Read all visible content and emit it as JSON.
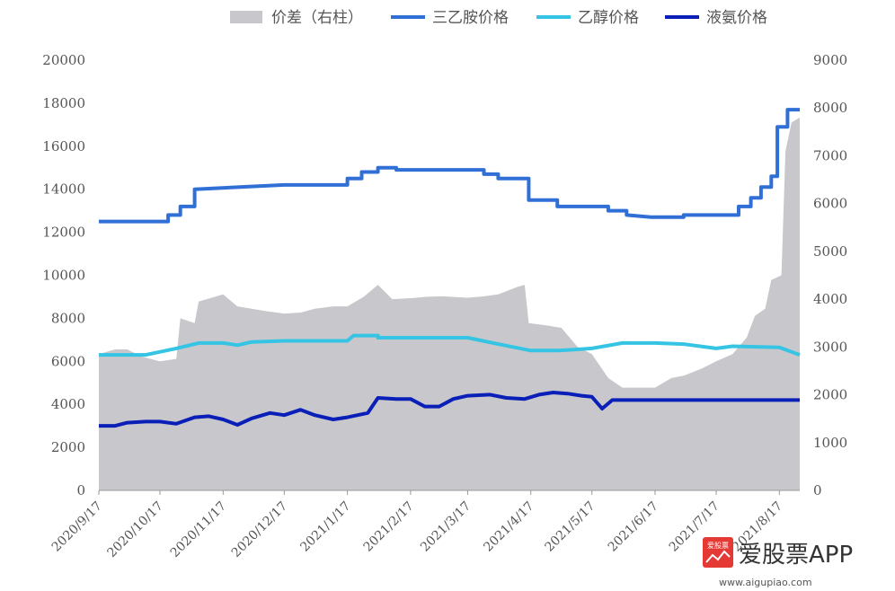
{
  "chart_data": {
    "type": "line",
    "x": [
      "2020/9/17",
      "2020/10/17",
      "2020/11/17",
      "2020/12/17",
      "2021/1/17",
      "2021/2/17",
      "2021/3/17",
      "2021/4/17",
      "2021/5/17",
      "2021/6/17",
      "2021/7/17",
      "2021/8/17"
    ],
    "ylim_left": [
      0,
      20000
    ],
    "ylim_right": [
      0,
      9000
    ],
    "yticks_left": [
      "0",
      "2000",
      "4000",
      "6000",
      "8000",
      "10000",
      "12000",
      "14000",
      "16000",
      "18000",
      "20000"
    ],
    "yticks_right": [
      "0",
      "1000",
      "2000",
      "3000",
      "4000",
      "5000",
      "6000",
      "7000",
      "8000",
      "9000"
    ],
    "grid": false,
    "legend_position": "top",
    "series": [
      {
        "name": "价差（右柱）",
        "kind": "area",
        "axis": "right",
        "color": "#c8c8cc",
        "points": [
          [
            "2020/9/17",
            2850
          ],
          [
            "2020/9/25",
            2950
          ],
          [
            "2020/10/1",
            2950
          ],
          [
            "2020/10/8",
            2800
          ],
          [
            "2020/10/17",
            2700
          ],
          [
            "2020/10/25",
            2750
          ],
          [
            "2020/10/27",
            3600
          ],
          [
            "2020/11/3",
            3500
          ],
          [
            "2020/11/5",
            3950
          ],
          [
            "2020/11/17",
            4100
          ],
          [
            "2020/11/24",
            3850
          ],
          [
            "2020/12/1",
            3800
          ],
          [
            "2020/12/8",
            3750
          ],
          [
            "2020/12/17",
            3700
          ],
          [
            "2020/12/25",
            3720
          ],
          [
            "2021/1/1",
            3800
          ],
          [
            "2021/1/10",
            3850
          ],
          [
            "2021/1/17",
            3850
          ],
          [
            "2021/1/25",
            4050
          ],
          [
            "2021/2/1",
            4300
          ],
          [
            "2021/2/8",
            4000
          ],
          [
            "2021/2/17",
            4020
          ],
          [
            "2021/2/25",
            4050
          ],
          [
            "2021/3/5",
            4060
          ],
          [
            "2021/3/17",
            4030
          ],
          [
            "2021/3/25",
            4060
          ],
          [
            "2021/4/1",
            4100
          ],
          [
            "2021/4/10",
            4250
          ],
          [
            "2021/4/14",
            4300
          ],
          [
            "2021/4/16",
            3500
          ],
          [
            "2021/4/25",
            3450
          ],
          [
            "2021/5/2",
            3400
          ],
          [
            "2021/5/10",
            3000
          ],
          [
            "2021/5/17",
            2850
          ],
          [
            "2021/5/25",
            2350
          ],
          [
            "2021/6/1",
            2150
          ],
          [
            "2021/6/10",
            2150
          ],
          [
            "2021/6/17",
            2150
          ],
          [
            "2021/6/25",
            2350
          ],
          [
            "2021/7/1",
            2400
          ],
          [
            "2021/7/10",
            2550
          ],
          [
            "2021/7/17",
            2700
          ],
          [
            "2021/7/25",
            2850
          ],
          [
            "2021/8/1",
            3200
          ],
          [
            "2021/8/5",
            3650
          ],
          [
            "2021/8/10",
            3800
          ],
          [
            "2021/8/13",
            4400
          ],
          [
            "2021/8/18",
            4500
          ],
          [
            "2021/8/20",
            7100
          ],
          [
            "2021/8/23",
            7700
          ],
          [
            "2021/8/27",
            7800
          ]
        ]
      },
      {
        "name": "三乙胺价格",
        "kind": "line",
        "axis": "left",
        "color": "#2f6fd6",
        "points": [
          [
            "2020/9/17",
            12500
          ],
          [
            "2020/10/21",
            12500
          ],
          [
            "2020/10/21",
            12800
          ],
          [
            "2020/10/27",
            12800
          ],
          [
            "2020/10/27",
            13200
          ],
          [
            "2020/11/3",
            13200
          ],
          [
            "2020/11/3",
            14000
          ],
          [
            "2020/12/17",
            14200
          ],
          [
            "2021/1/17",
            14200
          ],
          [
            "2021/1/17",
            14500
          ],
          [
            "2021/1/24",
            14500
          ],
          [
            "2021/1/24",
            14800
          ],
          [
            "2021/2/1",
            14800
          ],
          [
            "2021/2/1",
            15000
          ],
          [
            "2021/2/10",
            15000
          ],
          [
            "2021/2/10",
            14900
          ],
          [
            "2021/3/25",
            14900
          ],
          [
            "2021/3/25",
            14700
          ],
          [
            "2021/4/1",
            14700
          ],
          [
            "2021/4/1",
            14500
          ],
          [
            "2021/4/16",
            14500
          ],
          [
            "2021/4/16",
            13500
          ],
          [
            "2021/4/30",
            13500
          ],
          [
            "2021/4/30",
            13200
          ],
          [
            "2021/5/25",
            13200
          ],
          [
            "2021/5/25",
            13000
          ],
          [
            "2021/6/3",
            13000
          ],
          [
            "2021/6/3",
            12800
          ],
          [
            "2021/6/15",
            12700
          ],
          [
            "2021/7/1",
            12700
          ],
          [
            "2021/7/1",
            12800
          ],
          [
            "2021/7/28",
            12800
          ],
          [
            "2021/7/28",
            13200
          ],
          [
            "2021/8/3",
            13200
          ],
          [
            "2021/8/3",
            13600
          ],
          [
            "2021/8/8",
            13600
          ],
          [
            "2021/8/8",
            14100
          ],
          [
            "2021/8/13",
            14100
          ],
          [
            "2021/8/13",
            14600
          ],
          [
            "2021/8/16",
            14600
          ],
          [
            "2021/8/16",
            16900
          ],
          [
            "2021/8/21",
            16900
          ],
          [
            "2021/8/21",
            17700
          ],
          [
            "2021/8/27",
            17700
          ]
        ]
      },
      {
        "name": "乙醇价格",
        "kind": "line",
        "axis": "left",
        "color": "#35c4e4",
        "points": [
          [
            "2020/9/17",
            6300
          ],
          [
            "2020/10/10",
            6300
          ],
          [
            "2020/10/25",
            6600
          ],
          [
            "2020/11/5",
            6850
          ],
          [
            "2020/11/17",
            6850
          ],
          [
            "2020/11/24",
            6750
          ],
          [
            "2020/12/1",
            6900
          ],
          [
            "2020/12/17",
            6950
          ],
          [
            "2021/1/17",
            6950
          ],
          [
            "2021/1/20",
            7200
          ],
          [
            "2021/2/1",
            7200
          ],
          [
            "2021/2/1",
            7100
          ],
          [
            "2021/3/17",
            7100
          ],
          [
            "2021/4/1",
            6800
          ],
          [
            "2021/4/17",
            6500
          ],
          [
            "2021/5/1",
            6500
          ],
          [
            "2021/5/17",
            6600
          ],
          [
            "2021/6/1",
            6850
          ],
          [
            "2021/6/17",
            6850
          ],
          [
            "2021/7/1",
            6800
          ],
          [
            "2021/7/17",
            6600
          ],
          [
            "2021/7/25",
            6700
          ],
          [
            "2021/8/17",
            6650
          ],
          [
            "2021/8/27",
            6300
          ]
        ]
      },
      {
        "name": "液氨价格",
        "kind": "line",
        "axis": "left",
        "color": "#0a1fb8",
        "points": [
          [
            "2020/9/17",
            3000
          ],
          [
            "2020/9/25",
            3000
          ],
          [
            "2020/10/1",
            3150
          ],
          [
            "2020/10/10",
            3200
          ],
          [
            "2020/10/17",
            3200
          ],
          [
            "2020/10/25",
            3100
          ],
          [
            "2020/11/3",
            3400
          ],
          [
            "2020/11/10",
            3450
          ],
          [
            "2020/11/17",
            3300
          ],
          [
            "2020/11/24",
            3050
          ],
          [
            "2020/12/1",
            3350
          ],
          [
            "2020/12/10",
            3600
          ],
          [
            "2020/12/17",
            3500
          ],
          [
            "2020/12/25",
            3750
          ],
          [
            "2021/1/1",
            3500
          ],
          [
            "2021/1/10",
            3300
          ],
          [
            "2021/1/17",
            3400
          ],
          [
            "2021/1/27",
            3600
          ],
          [
            "2021/2/1",
            4300
          ],
          [
            "2021/2/10",
            4250
          ],
          [
            "2021/2/17",
            4250
          ],
          [
            "2021/2/24",
            3900
          ],
          [
            "2021/3/3",
            3900
          ],
          [
            "2021/3/10",
            4250
          ],
          [
            "2021/3/17",
            4400
          ],
          [
            "2021/3/28",
            4450
          ],
          [
            "2021/4/5",
            4300
          ],
          [
            "2021/4/14",
            4250
          ],
          [
            "2021/4/21",
            4450
          ],
          [
            "2021/4/28",
            4550
          ],
          [
            "2021/5/5",
            4500
          ],
          [
            "2021/5/12",
            4400
          ],
          [
            "2021/5/17",
            4350
          ],
          [
            "2021/5/22",
            3800
          ],
          [
            "2021/5/27",
            4200
          ],
          [
            "2021/6/5",
            4200
          ],
          [
            "2021/8/27",
            4200
          ]
        ]
      }
    ]
  },
  "watermark": {
    "logo_text": "爱股票",
    "brand": "爱股票APP",
    "url": "www.aigupiao.com"
  }
}
